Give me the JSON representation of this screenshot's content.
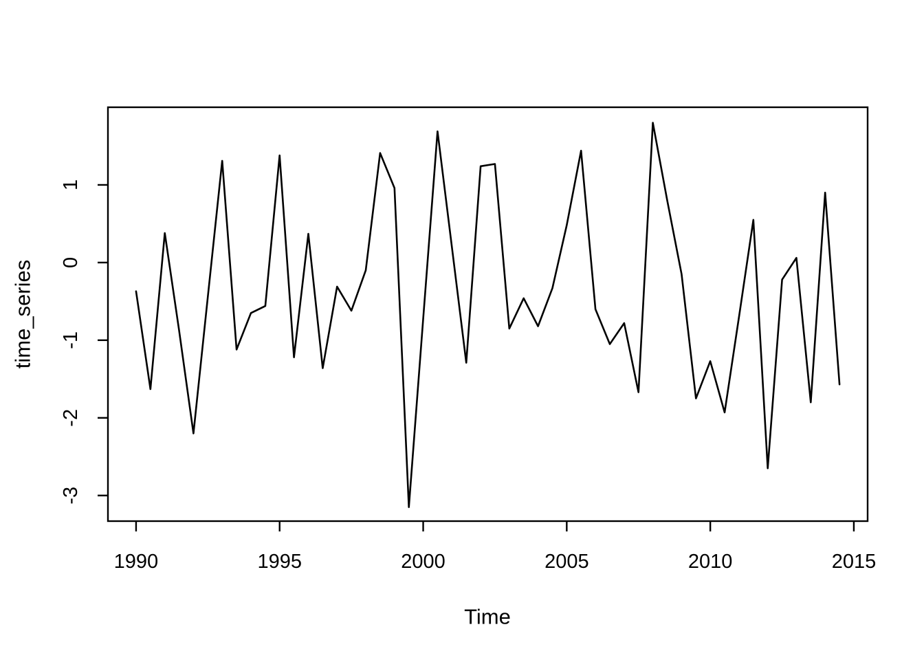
{
  "figure": {
    "background": "#ffffff",
    "line_color": "#000000",
    "axis_color": "#000000"
  },
  "chart_data": {
    "type": "line",
    "title": "",
    "xlabel": "Time",
    "ylabel": "time_series",
    "grid": false,
    "legend": false,
    "x_tick_labels": [
      "1990",
      "1995",
      "2000",
      "2005",
      "2010",
      "2015"
    ],
    "x_tick_values": [
      1990,
      1995,
      2000,
      2005,
      2010,
      2015
    ],
    "y_tick_labels": [
      "1",
      "0",
      "-1",
      "-2",
      "-3"
    ],
    "y_tick_values": [
      1,
      0,
      -1,
      -2,
      -3
    ],
    "xlim": [
      1989.02,
      2015.48
    ],
    "ylim": [
      -3.33,
      2.0
    ],
    "series": [
      {
        "name": "time_series",
        "color": "#000000",
        "x": [
          1990,
          1990.5,
          1991,
          1991.5,
          1992,
          1992.5,
          1993,
          1993.5,
          1994,
          1994.5,
          1995,
          1995.5,
          1996,
          1996.5,
          1997,
          1997.5,
          1998,
          1998.5,
          1999,
          1999.5,
          2000,
          2000.5,
          2001,
          2001.5,
          2002,
          2002.5,
          2003,
          2003.5,
          2004,
          2004.5,
          2005,
          2005.5,
          2006,
          2006.5,
          2007,
          2007.5,
          2008,
          2008.5,
          2009,
          2009.5,
          2010,
          2010.5,
          2011,
          2011.5,
          2012,
          2012.5,
          2013,
          2013.5,
          2014,
          2014.5
        ],
        "values": [
          -0.37,
          -1.63,
          0.38,
          -0.88,
          -2.2,
          -0.44,
          1.31,
          -1.12,
          -0.65,
          -0.56,
          1.38,
          -1.22,
          0.37,
          -1.36,
          -0.31,
          -0.62,
          -0.1,
          1.41,
          0.96,
          -3.15,
          -0.73,
          1.69,
          0.2,
          -1.29,
          1.24,
          1.27,
          -0.85,
          -0.46,
          -0.82,
          -0.33,
          0.48,
          1.44,
          -0.6,
          -1.05,
          -0.78,
          -1.67,
          1.8,
          0.8,
          -0.15,
          -1.75,
          -1.27,
          -1.93,
          -0.7,
          0.55,
          -2.65,
          -0.22,
          0.06,
          -1.8,
          0.9,
          -1.57
        ]
      }
    ]
  }
}
